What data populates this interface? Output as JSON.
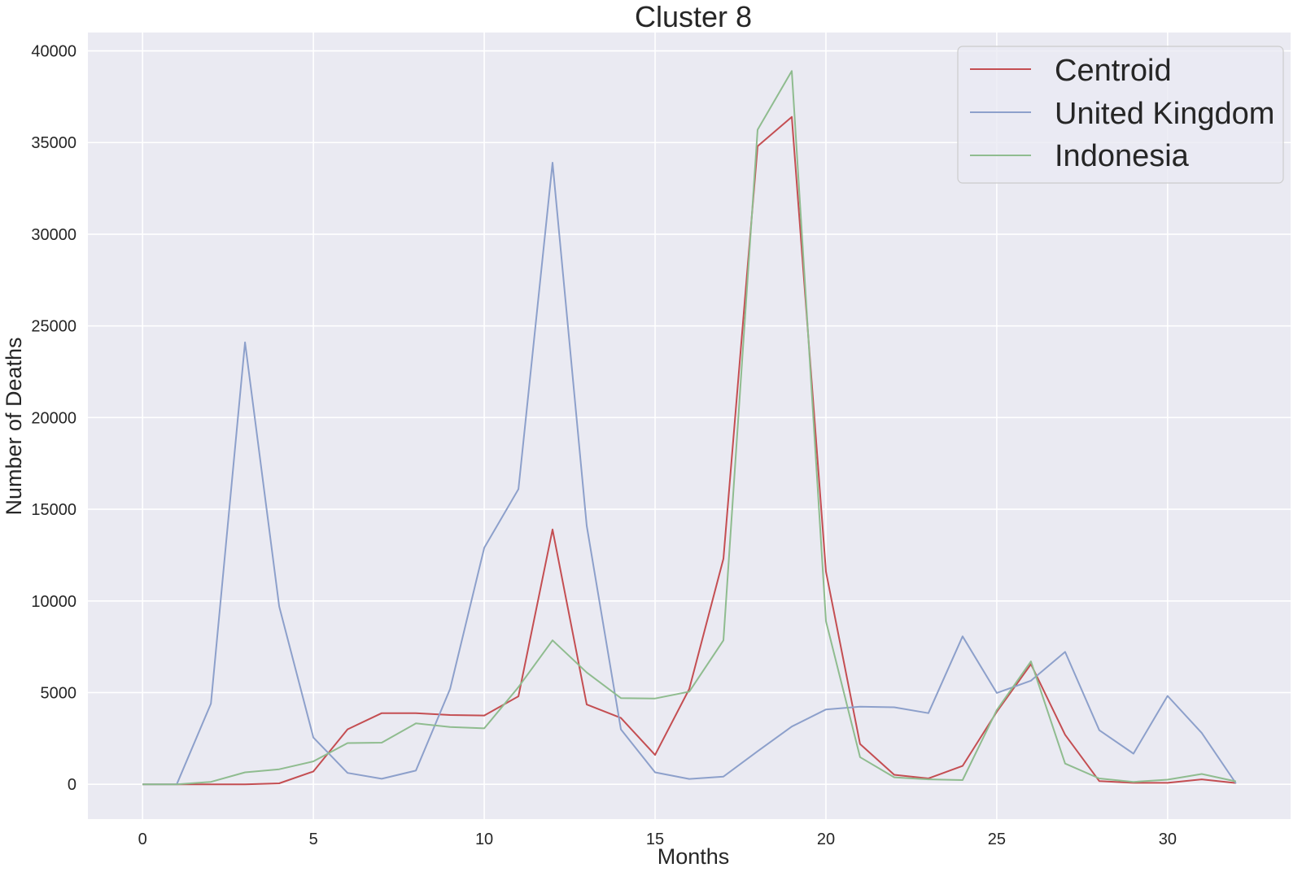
{
  "chart_data": {
    "type": "line",
    "title": "Cluster 8",
    "xlabel": "Months",
    "ylabel": "Number of Deaths",
    "xlim": [
      -1.6,
      33.6
    ],
    "ylim": [
      -1900,
      41000
    ],
    "xticks": [
      0,
      5,
      10,
      15,
      20,
      25,
      30
    ],
    "yticks": [
      0,
      5000,
      10000,
      15000,
      20000,
      25000,
      30000,
      35000,
      40000
    ],
    "grid": true,
    "legend_position": "top-right",
    "x": [
      0,
      1,
      2,
      3,
      4,
      5,
      6,
      7,
      8,
      9,
      10,
      11,
      12,
      13,
      14,
      15,
      16,
      17,
      18,
      19,
      20,
      21,
      22,
      23,
      24,
      25,
      26,
      27,
      28,
      29,
      30,
      31,
      32
    ],
    "series": [
      {
        "name": "Centroid",
        "color": "#c44e52",
        "values": [
          0,
          0,
          0,
          0,
          50,
          700,
          3000,
          3880,
          3880,
          3780,
          3750,
          4800,
          13900,
          4350,
          3620,
          1600,
          5200,
          12300,
          34800,
          36400,
          11600,
          2200,
          520,
          320,
          1000,
          3950,
          6550,
          2700,
          170,
          80,
          80,
          270,
          70
        ]
      },
      {
        "name": "United Kingdom",
        "color": "#8da0cb",
        "values": [
          0,
          0,
          4400,
          24100,
          9700,
          2550,
          620,
          300,
          750,
          5200,
          12900,
          16100,
          33900,
          14100,
          3000,
          650,
          290,
          420,
          1800,
          3150,
          4080,
          4230,
          4200,
          3880,
          8070,
          4980,
          5650,
          7220,
          2950,
          1670,
          4820,
          2800,
          50
        ]
      },
      {
        "name": "Indonesia",
        "color": "#8fbc8f",
        "values": [
          0,
          0,
          130,
          650,
          820,
          1250,
          2250,
          2270,
          3320,
          3120,
          3050,
          5300,
          7850,
          6100,
          4700,
          4680,
          5050,
          7850,
          35700,
          38900,
          8900,
          1480,
          380,
          270,
          230,
          4050,
          6700,
          1130,
          320,
          130,
          250,
          560,
          160
        ]
      }
    ]
  }
}
